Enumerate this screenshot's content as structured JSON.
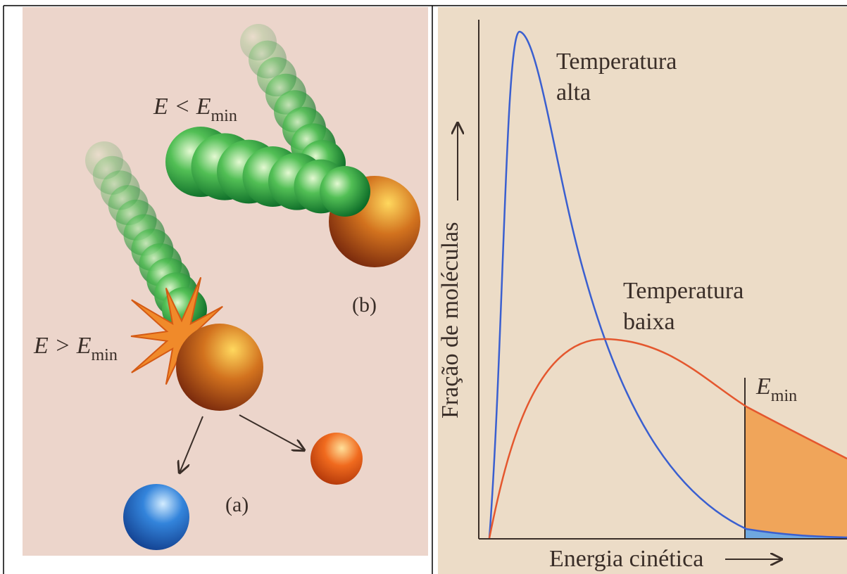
{
  "panel_b": {
    "label": "(b)",
    "energy_label": {
      "text": "E < E",
      "subscript": "min"
    }
  },
  "panel_a": {
    "label": "(a)",
    "energy_label": {
      "text": "E > E",
      "subscript": "min"
    }
  },
  "distribution": {
    "y_axis_label": "Fração de moléculas",
    "x_axis_label": "Energia cinética",
    "curves": [
      {
        "label_lines": [
          "Temperatura",
          "alta"
        ],
        "color": "#3a5fd0"
      },
      {
        "label_lines": [
          "Temperatura",
          "baixa"
        ],
        "color": "#e4572e"
      }
    ],
    "threshold_label": {
      "text": "E",
      "subscript": "min"
    }
  }
}
